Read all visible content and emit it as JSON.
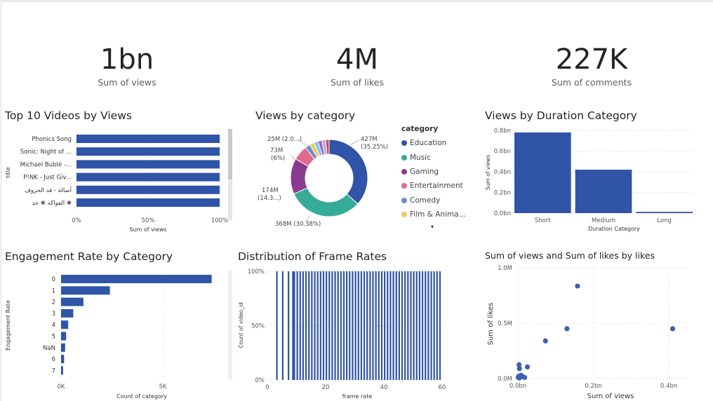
{
  "kpis": [
    {
      "value": "1bn",
      "label": "Sum of views"
    },
    {
      "value": "4M",
      "label": "Sum of likes"
    },
    {
      "value": "227K",
      "label": "Sum of comments"
    }
  ],
  "legend_more": "▾",
  "chart_data": [
    {
      "type": "bar",
      "orientation": "horizontal",
      "title": "Top 10 Videos by Views",
      "ylabel": "title",
      "xlabel": "Sum of views",
      "categories": [
        "Phonics Song",
        "Sonic: Night of ...",
        "Michael Bublé -...",
        "P!NK - Just Giv...",
        "أصالة - قد الحروف",
        "الفواكه ❀ جد ❀"
      ],
      "values": [
        100,
        100,
        100,
        100,
        100,
        100
      ],
      "xticks": [
        "0%",
        "50%",
        "100%"
      ],
      "xlim": [
        0,
        100
      ]
    },
    {
      "type": "pie",
      "title": "Views by category",
      "legend_title": "category",
      "legend_position": "right",
      "slices": [
        {
          "name": "Education",
          "value": 427,
          "share": 35.25,
          "label": "427M",
          "sublabel": "(35.25%)",
          "color": "#2f54a8"
        },
        {
          "name": "Music",
          "value": 368,
          "share": 30.38,
          "label": "368M (30.38%)",
          "sublabel": "",
          "color": "#36ab98"
        },
        {
          "name": "Gaming",
          "value": 174,
          "share": 14.3,
          "label": "174M",
          "sublabel": "(14.3...)",
          "color": "#8a3a8f"
        },
        {
          "name": "Entertainment",
          "value": 73,
          "share": 6,
          "label": "73M",
          "sublabel": "(6%)",
          "color": "#df6a8a"
        },
        {
          "name": "Comedy",
          "value": 25,
          "share": 2.0,
          "label": "25M (2.0...)",
          "sublabel": "",
          "color": "#6e8dd0"
        },
        {
          "name": "Film & Anima...",
          "value": 22,
          "share": 1.8,
          "label": "",
          "sublabel": "",
          "color": "#f3c75f"
        },
        {
          "name": "",
          "value": 20,
          "share": 1.7,
          "label": "",
          "sublabel": "",
          "color": "#7dc9e8"
        },
        {
          "name": "",
          "value": 20,
          "share": 1.7,
          "label": "",
          "sublabel": "",
          "color": "#9a6ad6"
        },
        {
          "name": "",
          "value": 18,
          "share": 1.5,
          "label": "",
          "sublabel": "",
          "color": "#a9b3c9"
        },
        {
          "name": "",
          "value": 17,
          "share": 1.4,
          "label": "",
          "sublabel": "",
          "color": "#d0465e"
        }
      ]
    },
    {
      "type": "bar",
      "title": "Views by Duration Category",
      "xlabel": "Duration Category",
      "ylabel": "Sum of views",
      "categories": [
        "Short",
        "Medium",
        "Long"
      ],
      "values": [
        0.78,
        0.42,
        0.012
      ],
      "yticks": [
        "0.0bn",
        "0.2bn",
        "0.4bn",
        "0.6bn",
        "0.8bn"
      ],
      "ylim": [
        0,
        0.8
      ]
    },
    {
      "type": "bar",
      "orientation": "horizontal",
      "title": "Engagement Rate by Category",
      "ylabel": "Engagement Rate",
      "xlabel": "Count of category",
      "categories": [
        "0",
        "1",
        "2",
        "3",
        "4",
        "5",
        "NaN",
        "6",
        "7"
      ],
      "values": [
        7400,
        2400,
        1100,
        600,
        350,
        250,
        200,
        150,
        100
      ],
      "xticks": [
        "0K",
        "5K"
      ],
      "xlim": [
        0,
        8000
      ]
    },
    {
      "type": "bar",
      "title": "Distribution of Frame Rates",
      "xlabel": "frame rate",
      "ylabel": "Count of video_id",
      "yticks": [
        "0%",
        "50%",
        "100%"
      ],
      "xticks": [
        "0",
        "20",
        "40",
        "60"
      ],
      "xlim": [
        0,
        60
      ],
      "ylim": [
        0,
        100
      ],
      "x": [
        3,
        5,
        7,
        8.5,
        9,
        10,
        11,
        12,
        13,
        14,
        15,
        16,
        17,
        18,
        19,
        20,
        21,
        22,
        23,
        24,
        25,
        26,
        27,
        28,
        29,
        30,
        31,
        32,
        33,
        34,
        35,
        36,
        37,
        38,
        39,
        40,
        41,
        42,
        43,
        44,
        45,
        46,
        47,
        48,
        49,
        50,
        51,
        52,
        53,
        54,
        55,
        56,
        57,
        58,
        59
      ],
      "values": [
        100,
        100,
        100,
        100,
        100,
        100,
        100,
        100,
        100,
        100,
        100,
        100,
        100,
        100,
        100,
        100,
        100,
        100,
        100,
        100,
        100,
        100,
        100,
        100,
        100,
        100,
        100,
        100,
        100,
        100,
        100,
        100,
        100,
        100,
        100,
        100,
        100,
        100,
        100,
        100,
        100,
        100,
        100,
        100,
        100,
        100,
        100,
        100,
        100,
        100,
        100,
        100,
        100,
        100,
        100
      ]
    },
    {
      "type": "scatter",
      "title": "Sum of views and Sum of likes by likes",
      "xlabel": "Sum of views",
      "ylabel": "Sum of likes",
      "xticks": [
        "0.0bn",
        "0.2bn",
        "0.4bn"
      ],
      "yticks": [
        "0.0M",
        "0.5M",
        "1.0M"
      ],
      "xlim": [
        0,
        0.45
      ],
      "ylim": [
        0,
        1.0
      ],
      "points": [
        {
          "x": 0.158,
          "y": 0.835
        },
        {
          "x": 0.13,
          "y": 0.45
        },
        {
          "x": 0.41,
          "y": 0.45
        },
        {
          "x": 0.073,
          "y": 0.34
        },
        {
          "x": 0.003,
          "y": 0.125
        },
        {
          "x": 0.004,
          "y": 0.09
        },
        {
          "x": 0.025,
          "y": 0.105
        },
        {
          "x": 0.008,
          "y": 0.03
        },
        {
          "x": 0.012,
          "y": 0.02
        },
        {
          "x": 0.018,
          "y": 0.01
        },
        {
          "x": 0.002,
          "y": 0.02
        },
        {
          "x": 0.004,
          "y": 0.005
        },
        {
          "x": 0.001,
          "y": 0.01
        },
        {
          "x": 0.006,
          "y": 0.012
        }
      ]
    }
  ]
}
